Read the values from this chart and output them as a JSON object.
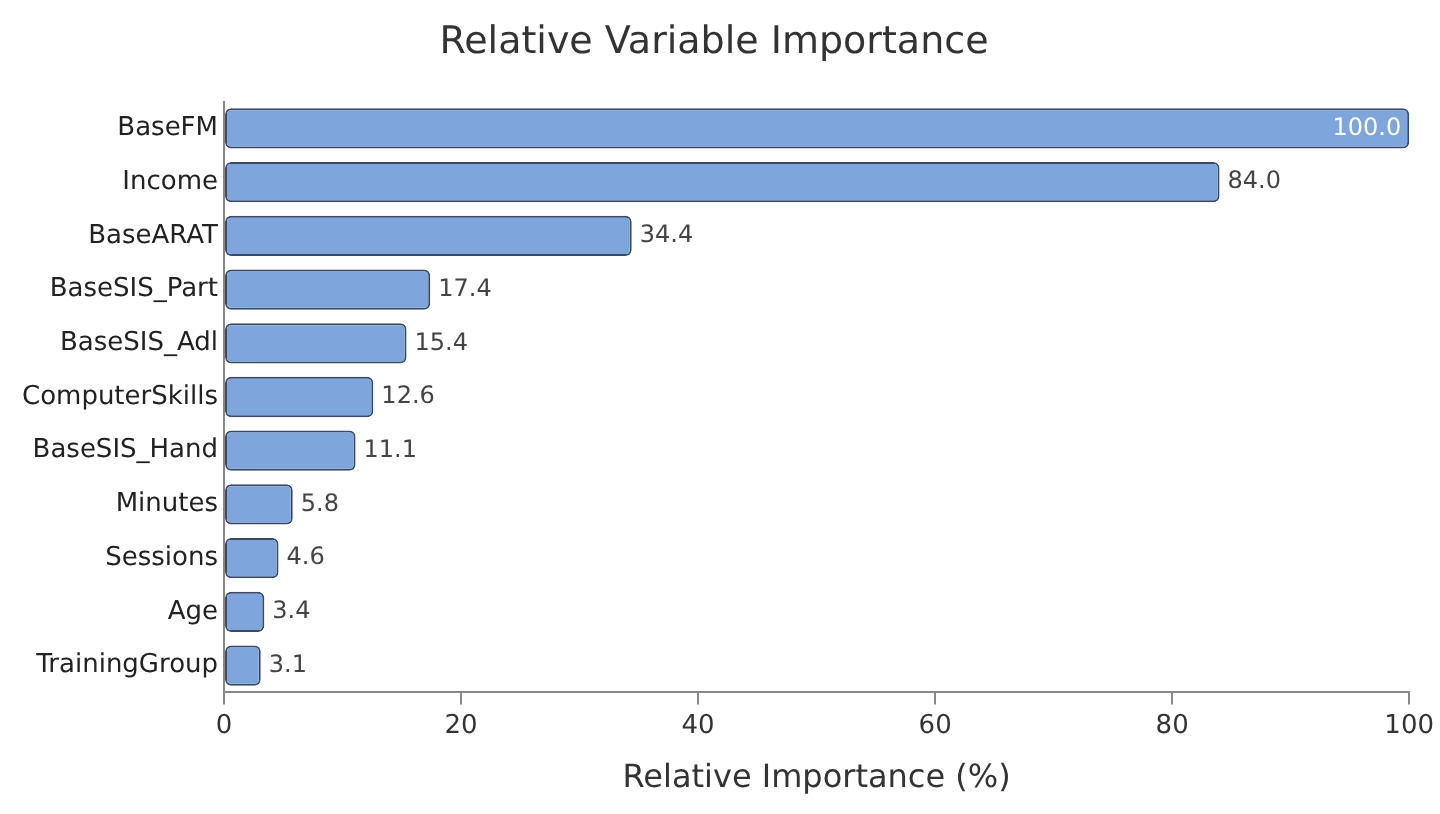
{
  "chart_data": {
    "type": "bar",
    "orientation": "horizontal",
    "title": "Relative Variable Importance",
    "xlabel": "Relative Importance (%)",
    "categories": [
      "BaseFM",
      "Income",
      "BaseARAT",
      "BaseSIS_Part",
      "BaseSIS_Adl",
      "ComputerSkills",
      "BaseSIS_Hand",
      "Minutes",
      "Sessions",
      "Age",
      "TrainingGroup"
    ],
    "values": [
      100.0,
      84.0,
      34.4,
      17.4,
      15.4,
      12.6,
      11.1,
      5.8,
      4.6,
      3.4,
      3.1
    ],
    "value_labels": [
      "100.0",
      "84.0",
      "34.4",
      "17.4",
      "15.4",
      "12.6",
      "11.1",
      "5.8",
      "4.6",
      "3.4",
      "3.1"
    ],
    "color": "#7ea6dc",
    "xlim": [
      0,
      100
    ],
    "xticks": [
      0,
      20,
      40,
      60,
      80,
      100
    ],
    "grid": false,
    "legend": false
  }
}
